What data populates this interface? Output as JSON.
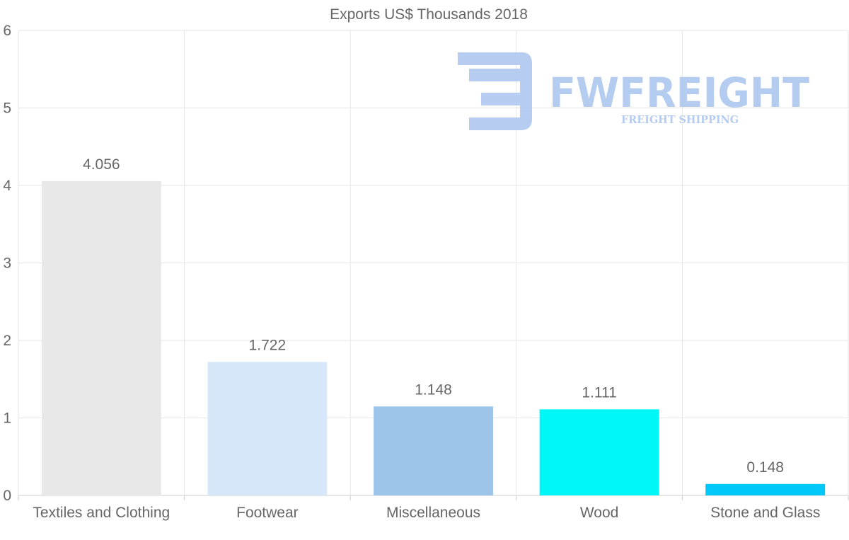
{
  "chart_data": {
    "type": "bar",
    "title": "Exports US$ Thousands 2018",
    "categories": [
      "Textiles and Clothing",
      "Footwear",
      "Miscellaneous",
      "Wood",
      "Stone and Glass"
    ],
    "values": [
      4.056,
      1.722,
      1.148,
      1.111,
      0.148
    ],
    "value_labels": [
      "4.056",
      "1.722",
      "1.148",
      "1.111",
      "0.148"
    ],
    "bar_colors": [
      "#e8e8e8",
      "#d6e7f9",
      "#9cc5e9",
      "#00f7f7",
      "#00c8f9"
    ],
    "ylim": [
      0,
      6
    ],
    "yticks": [
      0,
      1,
      2,
      3,
      4,
      5,
      6
    ],
    "xlabel": "",
    "ylabel": "",
    "grid": true,
    "legend": "none"
  },
  "watermark": {
    "brand": "FWFREIGHT",
    "tagline": "FREIGHT SHIPPING",
    "color": "#a9c4ef"
  }
}
